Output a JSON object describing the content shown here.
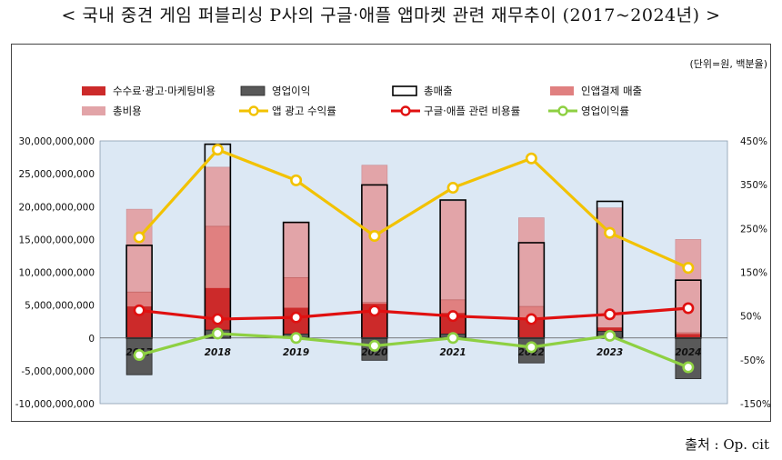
{
  "title": "< 국내 중견 게임 퍼블리싱 P사의 구글·애플 앱마켓 관련 재무추이 (2017~2024년) >",
  "unit_note": "(단위=원, 백분율)",
  "source": "출처 : Op. cit",
  "chart_data": {
    "type": "bar",
    "categories": [
      "2017",
      "2018",
      "2019",
      "2020",
      "2021",
      "2022",
      "2023",
      "2024"
    ],
    "series": [
      {
        "name": "수수료·광고·마케팅비용",
        "kind": "bar",
        "axis": "left",
        "color": "#cc2a2a",
        "values": [
          4800000000,
          7600000000,
          4600000000,
          5200000000,
          3800000000,
          2800000000,
          1600000000,
          600000000
        ]
      },
      {
        "name": "영업이익",
        "kind": "bar",
        "axis": "left",
        "color": "#595959",
        "values": [
          -5600000000,
          1200000000,
          600000000,
          -3400000000,
          600000000,
          -3800000000,
          1000000000,
          -6200000000
        ]
      },
      {
        "name": "총매출",
        "kind": "bar-outline",
        "axis": "left",
        "color": "#000000",
        "values": [
          14100000000,
          29500000000,
          17600000000,
          23300000000,
          21000000000,
          14500000000,
          20800000000,
          8800000000
        ]
      },
      {
        "name": "인앱결제 매출",
        "kind": "bar",
        "axis": "left",
        "color": "#e08080",
        "values": [
          7000000000,
          17000000000,
          9200000000,
          5400000000,
          5800000000,
          4800000000,
          1500000000,
          800000000
        ]
      },
      {
        "name": "총비용",
        "kind": "bar",
        "axis": "left",
        "color": "#e2a4a8",
        "values": [
          19600000000,
          26000000000,
          17500000000,
          26300000000,
          20800000000,
          18300000000,
          19800000000,
          15000000000
        ]
      },
      {
        "name": "앱 광고 수익률",
        "kind": "line",
        "axis": "right",
        "color": "#f2c200",
        "values": [
          230,
          430,
          360,
          233,
          343,
          410,
          240,
          160
        ]
      },
      {
        "name": "구글·애플 관련 비용률",
        "kind": "line",
        "axis": "right",
        "color": "#e01010",
        "values": [
          63,
          43,
          47,
          62,
          50,
          43,
          54,
          68
        ]
      },
      {
        "name": "영업이익률",
        "kind": "line",
        "axis": "right",
        "color": "#8ed042",
        "values": [
          -39,
          10,
          0,
          -18,
          0,
          -21,
          5,
          -67
        ]
      }
    ],
    "y_left": {
      "ylim": [
        -10000000000,
        30000000000
      ],
      "ticks": [
        "30,000,000,000",
        "25,000,000,000",
        "20,000,000,000",
        "15,000,000,000",
        "10,000,000,000",
        "5,000,000,000",
        "0",
        "-5,000,000,000",
        "-10,000,000,000"
      ]
    },
    "y_right": {
      "ylim": [
        -150,
        450
      ],
      "ticks": [
        "450%",
        "350%",
        "250%",
        "150%",
        "50%",
        "-50%",
        "-150%"
      ]
    },
    "legend": "top",
    "grid": false
  }
}
